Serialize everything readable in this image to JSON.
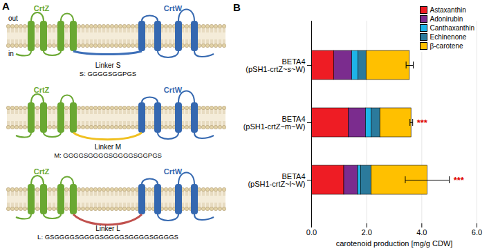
{
  "diagram": {
    "panel_label": "A",
    "out_label": "out",
    "in_label": "in",
    "rows": [
      {
        "proteins": [
          "CrtZ",
          "CrtW"
        ],
        "linker": "Linker S",
        "sequence": "S: GGGGSGGPGS",
        "color": "#3d6fb8"
      },
      {
        "proteins": [
          "CrtZ",
          "CrtW"
        ],
        "linker": "Linker M",
        "sequence": "M: GGGGSGGGGSGGGGSGGPGS",
        "color": "#f0c020"
      },
      {
        "proteins": [
          "CrtZ",
          "CrtW"
        ],
        "linker": "Linker L",
        "sequence": "L: GSGGGGSGGGGSGGGGSGGGGSGGGGS",
        "color": "#c0504d"
      }
    ]
  },
  "chart_data": {
    "type": "bar",
    "panel_label": "B",
    "orientation": "horizontal",
    "stacked": true,
    "categories": [
      "BETA4\n(pSH1-crtZ~s~W)",
      "BETA4\n(pSH1-crtZ~m~W)",
      "BETA4\n(pSH1-crtZ~l~W)"
    ],
    "series": [
      {
        "name": "Astaxanthin",
        "color": "#ee1c24",
        "values": [
          0.82,
          1.35,
          1.18
        ]
      },
      {
        "name": "Adonirubin",
        "color": "#7b2c8e",
        "values": [
          0.65,
          0.62,
          0.5
        ]
      },
      {
        "name": "Canthaxanthin",
        "color": "#1eb4e8",
        "values": [
          0.22,
          0.2,
          0.12
        ]
      },
      {
        "name": "Echinenone",
        "color": "#2b7a9c",
        "values": [
          0.3,
          0.32,
          0.37
        ]
      },
      {
        "name": "β-carotene",
        "color": "#ffc000",
        "values": [
          1.57,
          1.13,
          2.03
        ]
      }
    ],
    "errors": [
      0.13,
      0.05,
      0.8
    ],
    "significance": [
      null,
      "***",
      "***"
    ],
    "x_label": "carotenoid production [mg/g CDW]",
    "xlim": [
      0,
      6
    ],
    "xticks": [
      0,
      2,
      4,
      6
    ],
    "grid": true,
    "legend": "top-right"
  }
}
